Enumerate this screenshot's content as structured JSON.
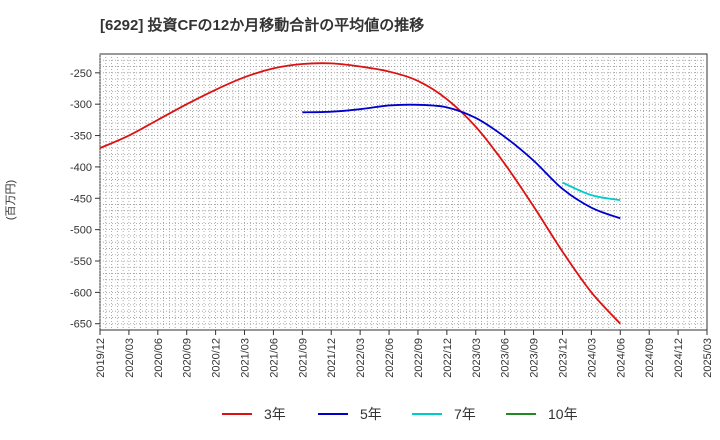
{
  "chart_data": {
    "type": "line",
    "title": "[6292]  投資CFの12か月移動合計の平均値の推移",
    "ylabel": "(百万円)",
    "xlabel": "",
    "ylim": [
      -660,
      -220
    ],
    "yticks": [
      -250,
      -300,
      -350,
      -400,
      -450,
      -500,
      -550,
      -600,
      -650
    ],
    "x_categories": [
      "2019/12",
      "2020/03",
      "2020/06",
      "2020/09",
      "2020/12",
      "2021/03",
      "2021/06",
      "2021/09",
      "2021/12",
      "2022/03",
      "2022/06",
      "2022/09",
      "2022/12",
      "2023/03",
      "2023/06",
      "2023/09",
      "2023/12",
      "2024/03",
      "2024/06",
      "2024/09",
      "2024/12",
      "2025/03"
    ],
    "grid": true,
    "legend_position": "bottom",
    "series": [
      {
        "name": "3年",
        "color": "#dd1111",
        "points": [
          [
            "2019/12",
            -370
          ],
          [
            "2020/03",
            -350
          ],
          [
            "2020/06",
            -325
          ],
          [
            "2020/09",
            -300
          ],
          [
            "2020/12",
            -277
          ],
          [
            "2021/03",
            -257
          ],
          [
            "2021/06",
            -243
          ],
          [
            "2021/09",
            -236
          ],
          [
            "2021/12",
            -235
          ],
          [
            "2022/03",
            -240
          ],
          [
            "2022/06",
            -248
          ],
          [
            "2022/09",
            -263
          ],
          [
            "2022/12",
            -292
          ],
          [
            "2023/03",
            -336
          ],
          [
            "2023/06",
            -395
          ],
          [
            "2023/09",
            -463
          ],
          [
            "2023/12",
            -535
          ],
          [
            "2024/03",
            -600
          ],
          [
            "2024/06",
            -650
          ]
        ]
      },
      {
        "name": "5年",
        "color": "#0000cc",
        "points": [
          [
            "2021/09",
            -313
          ],
          [
            "2021/12",
            -312
          ],
          [
            "2022/03",
            -308
          ],
          [
            "2022/06",
            -302
          ],
          [
            "2022/09",
            -301
          ],
          [
            "2022/12",
            -305
          ],
          [
            "2023/03",
            -322
          ],
          [
            "2023/06",
            -352
          ],
          [
            "2023/09",
            -390
          ],
          [
            "2023/12",
            -435
          ],
          [
            "2024/03",
            -465
          ],
          [
            "2024/06",
            -482
          ]
        ]
      },
      {
        "name": "7年",
        "color": "#00cccc",
        "points": [
          [
            "2023/12",
            -425
          ],
          [
            "2024/03",
            -445
          ],
          [
            "2024/06",
            -453
          ]
        ]
      },
      {
        "name": "10年",
        "color": "#228822",
        "points": []
      }
    ]
  }
}
